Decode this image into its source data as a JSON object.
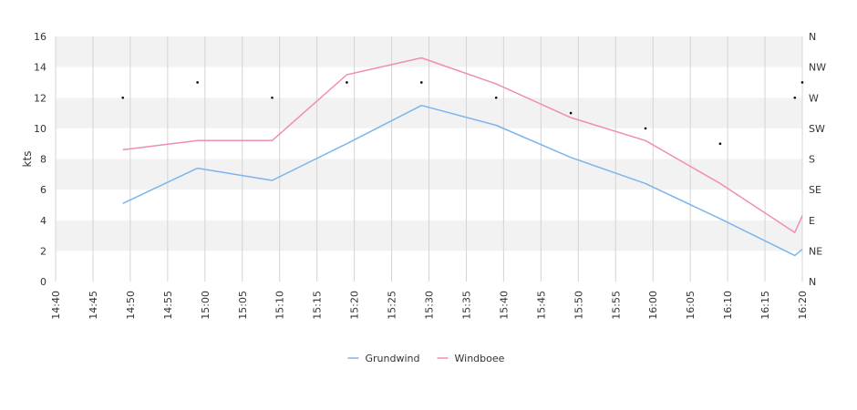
{
  "chart_data": {
    "type": "line",
    "title": "",
    "ylabel": "kts",
    "ylim": [
      0,
      16
    ],
    "y_ticks": [
      "0",
      "2",
      "4",
      "6",
      "8",
      "10",
      "12",
      "14",
      "16"
    ],
    "y2_ticks": [
      "N",
      "NE",
      "E",
      "SE",
      "S",
      "SW",
      "W",
      "NW",
      "N"
    ],
    "x_ticks": [
      "14:40",
      "14:45",
      "14:50",
      "14:55",
      "15:00",
      "15:05",
      "15:10",
      "15:15",
      "15:20",
      "15:25",
      "15:30",
      "15:35",
      "15:40",
      "15:45",
      "15:50",
      "15:55",
      "16:00",
      "16:05",
      "16:10",
      "16:15",
      "16:20"
    ],
    "xlim": [
      "14:40",
      "16:20"
    ],
    "grid": "alternating horizontal bands, vertical gridlines",
    "legend_position": "bottom-center",
    "series": [
      {
        "name": "Grundwind",
        "color": "#7cb5ec",
        "points": [
          {
            "x": "14:49",
            "y": 5.1
          },
          {
            "x": "14:59",
            "y": 7.4
          },
          {
            "x": "15:09",
            "y": 6.6
          },
          {
            "x": "15:19",
            "y": 9.0
          },
          {
            "x": "15:29",
            "y": 11.5
          },
          {
            "x": "15:39",
            "y": 10.2
          },
          {
            "x": "15:49",
            "y": 8.1
          },
          {
            "x": "15:59",
            "y": 6.4
          },
          {
            "x": "16:09",
            "y": 4.1
          },
          {
            "x": "16:19",
            "y": 1.7
          },
          {
            "x": "16:20",
            "y": 2.1
          }
        ]
      },
      {
        "name": "Windboee",
        "color": "#f08cb8",
        "points": [
          {
            "x": "14:49",
            "y": 8.6
          },
          {
            "x": "14:59",
            "y": 9.2
          },
          {
            "x": "15:09",
            "y": 9.2
          },
          {
            "x": "15:19",
            "y": 13.5
          },
          {
            "x": "15:29",
            "y": 14.6
          },
          {
            "x": "15:39",
            "y": 12.9
          },
          {
            "x": "15:49",
            "y": 10.7
          },
          {
            "x": "15:59",
            "y": 9.2
          },
          {
            "x": "16:09",
            "y": 6.4
          },
          {
            "x": "16:19",
            "y": 3.2
          },
          {
            "x": "16:20",
            "y": 4.3
          }
        ]
      },
      {
        "name": "",
        "type": "scatter",
        "axis": "direction",
        "color": "#000000",
        "points": [
          {
            "x": "14:49",
            "y": "W"
          },
          {
            "x": "14:59",
            "y": "WNW"
          },
          {
            "x": "15:09",
            "y": "W"
          },
          {
            "x": "15:19",
            "y": "WNW"
          },
          {
            "x": "15:29",
            "y": "WNW"
          },
          {
            "x": "15:39",
            "y": "W"
          },
          {
            "x": "15:49",
            "y": "WSW"
          },
          {
            "x": "15:59",
            "y": "SW"
          },
          {
            "x": "16:09",
            "y": "SSW"
          },
          {
            "x": "16:19",
            "y": "W"
          },
          {
            "x": "16:20",
            "y": "WNW"
          }
        ]
      }
    ]
  }
}
